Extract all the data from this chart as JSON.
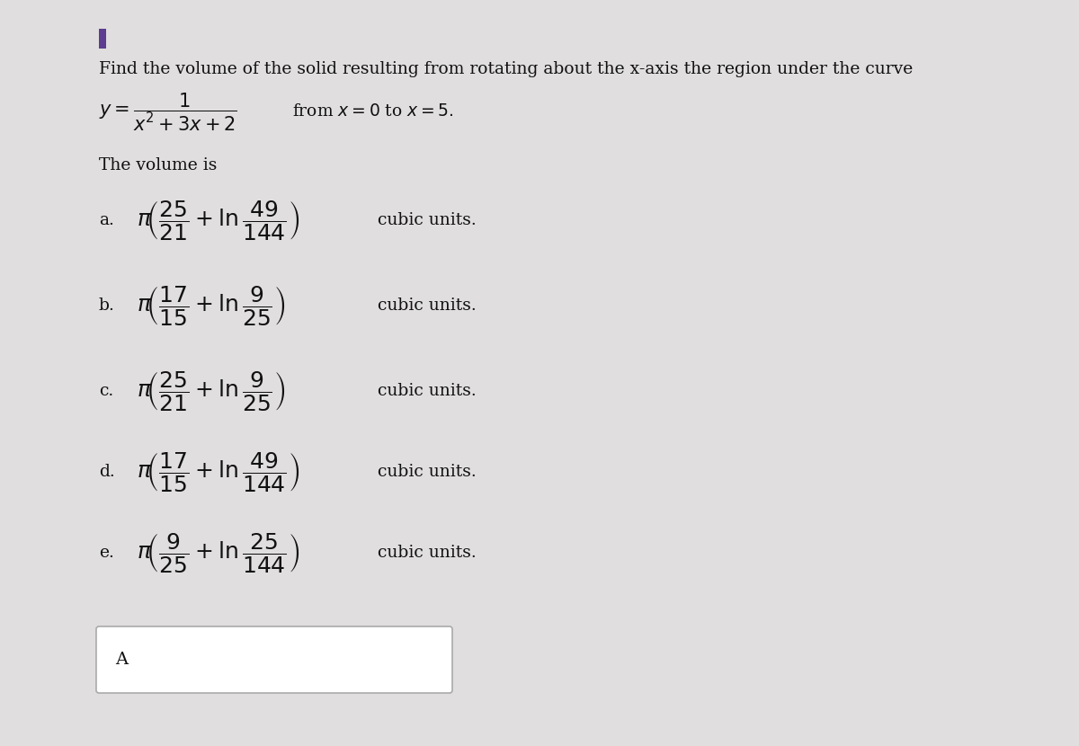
{
  "bg_color": "#e0dede",
  "content_bg": "#ebebeb",
  "title_line1": "Find the volume of the solid resulting from rotating about the x-axis the region under the curve",
  "volume_label": "The volume is",
  "answers": [
    {
      "label": "a.",
      "expr": "\\pi\\!\\left(\\dfrac{25}{21}+\\ln\\dfrac{49}{144}\\right)",
      "suffix": "cubic units."
    },
    {
      "label": "b.",
      "expr": "\\pi\\!\\left(\\dfrac{17}{15}+\\ln\\dfrac{9}{25}\\right)",
      "suffix": "cubic units."
    },
    {
      "label": "c.",
      "expr": "\\pi\\!\\left(\\dfrac{25}{21}+\\ln\\dfrac{9}{25}\\right)",
      "suffix": "cubic units."
    },
    {
      "label": "d.",
      "expr": "\\pi\\!\\left(\\dfrac{17}{15}+\\ln\\dfrac{49}{144}\\right)",
      "suffix": "cubic units."
    },
    {
      "label": "e.",
      "expr": "\\pi\\!\\left(\\dfrac{9}{25}+\\ln\\dfrac{25}{144}\\right)",
      "suffix": "cubic units."
    }
  ],
  "answer_box_label": "A",
  "purple_mark_color": "#5c3d8f",
  "box_edge_color": "#aaaaaa",
  "text_color": "#111111"
}
